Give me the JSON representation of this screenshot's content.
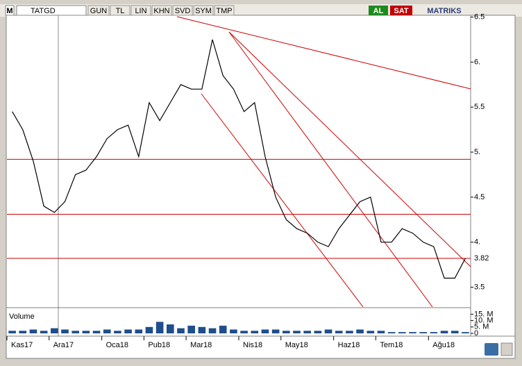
{
  "toolbar": {
    "logo": "M",
    "symbol": "TATGD",
    "buttons": [
      "GUN",
      "TL",
      "LIN",
      "KHN",
      "SVD",
      "SYM",
      "TMP"
    ],
    "buy": "AL",
    "sell": "SAT",
    "brand": "MATRIKS"
  },
  "chart_data": [
    {
      "type": "line",
      "categories": [
        "Kas17",
        null,
        null,
        null,
        "Ara17",
        null,
        null,
        null,
        null,
        "Oca18",
        null,
        null,
        null,
        "Pub18",
        null,
        null,
        null,
        "Mar18",
        null,
        null,
        null,
        null,
        "Nis18",
        null,
        null,
        null,
        "May18",
        null,
        null,
        null,
        null,
        "Haz18",
        null,
        null,
        null,
        "Tem18",
        null,
        null,
        null,
        null,
        "Ağu18",
        null,
        null,
        null
      ],
      "series": [
        {
          "color": "#000000",
          "values": [
            5.45,
            5.25,
            4.9,
            4.4,
            4.33,
            4.45,
            4.75,
            4.8,
            4.95,
            5.15,
            5.25,
            5.3,
            4.95,
            5.55,
            5.35,
            5.55,
            5.75,
            5.7,
            5.7,
            6.25,
            5.85,
            5.7,
            5.45,
            5.55,
            4.95,
            4.5,
            4.25,
            4.15,
            4.1,
            4.0,
            3.95,
            4.15,
            4.3,
            4.45,
            4.5,
            4.0,
            4.0,
            4.15,
            4.1,
            4.0,
            3.95,
            3.6,
            3.6,
            3.82
          ]
        }
      ],
      "ylim": [
        3.28,
        6.52
      ],
      "yticks": [
        3.5,
        {
          "value": 4,
          "label": "4."
        },
        4.5,
        {
          "value": 5,
          "label": "5."
        },
        5.5,
        {
          "value": 6,
          "label": "6."
        },
        6.5
      ],
      "hlines": [
        4.92,
        4.31
      ],
      "last_price": 3.82,
      "line_color": "#cc0000"
    },
    {
      "type": "bar",
      "title": "Volume",
      "color": "#1f4e8c",
      "values": [
        2000000,
        2000000,
        3000000,
        2000000,
        4000000,
        3000000,
        2000000,
        2000000,
        2000000,
        3000000,
        2000000,
        3000000,
        3000000,
        5000000,
        9000000,
        7000000,
        4000000,
        6000000,
        5000000,
        4000000,
        6000000,
        3000000,
        2000000,
        2000000,
        3000000,
        3000000,
        2000000,
        2000000,
        2000000,
        2000000,
        3000000,
        2000000,
        2000000,
        3000000,
        2000000,
        2000000,
        1000000,
        1000000,
        1000000,
        1000000,
        1000000,
        2000000,
        2000000,
        1000000
      ],
      "ylim": [
        0,
        19000000
      ],
      "yticks": [
        {
          "value": 0,
          "label": "0"
        },
        {
          "value": 5000000,
          "label": "5. M"
        },
        {
          "value": 10000000,
          "label": "10. M"
        },
        {
          "value": 15000000,
          "label": "15. M"
        }
      ]
    }
  ]
}
